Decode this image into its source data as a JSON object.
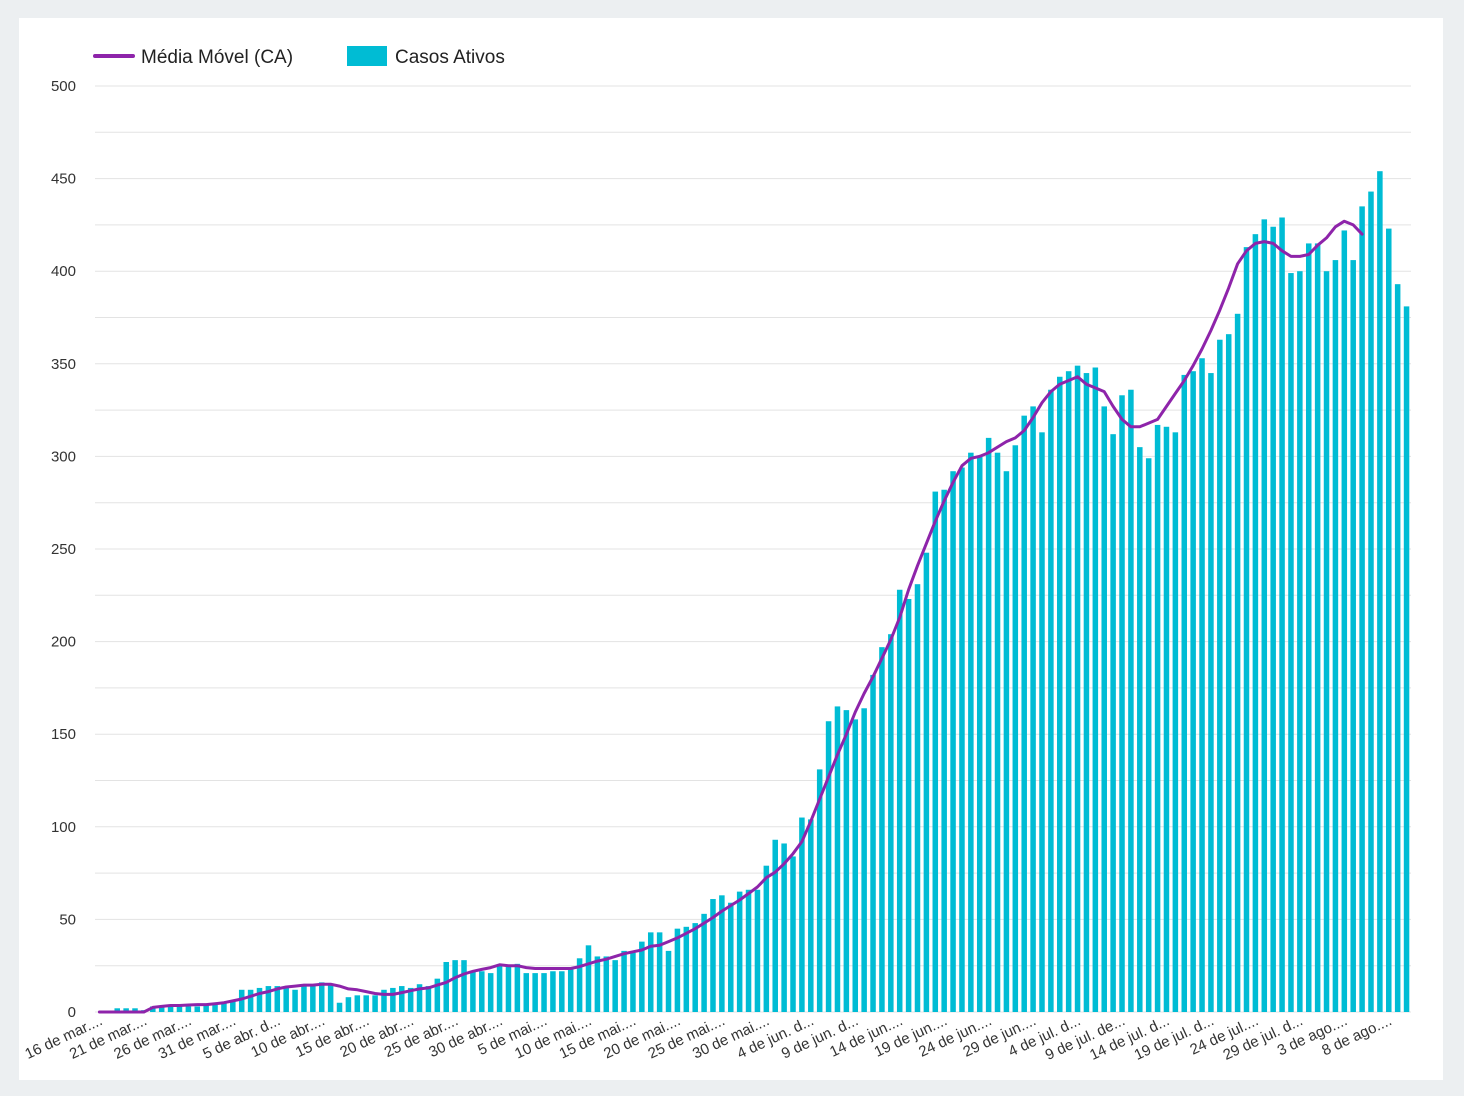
{
  "chart_data": {
    "type": "bar",
    "title": "",
    "xlabel": "",
    "ylabel": "",
    "ylim": [
      0,
      500
    ],
    "yticks": [
      0,
      50,
      100,
      150,
      200,
      250,
      300,
      350,
      400,
      450,
      500
    ],
    "grid": true,
    "legend_position": "top-left",
    "x_tick_labels": [
      "16 de mar....",
      "21 de mar....",
      "26 de mar....",
      "31 de mar....",
      "5 de abr. d...",
      "10 de abr....",
      "15 de abr....",
      "20 de abr....",
      "25 de abr....",
      "30 de abr....",
      "5 de mai....",
      "10 de mai....",
      "15 de mai....",
      "20 de mai....",
      "25 de mai....",
      "30 de mai....",
      "4 de jun. d...",
      "9 de jun. d...",
      "14 de jun....",
      "19 de jun....",
      "24 de jun....",
      "29 de jun....",
      "4 de jul. d...",
      "9 de jul. de...",
      "14 de jul. d...",
      "19 de jul. d...",
      "24 de jul....",
      "29 de jul. d...",
      "3 de ago....",
      "8 de ago...."
    ],
    "series": [
      {
        "name": "Casos Ativos",
        "type": "bar",
        "color": "#00bcd4",
        "values": [
          0,
          0,
          2,
          2,
          2,
          1,
          3,
          3,
          3,
          3,
          3,
          3,
          4,
          4,
          5,
          6,
          12,
          12,
          13,
          14,
          14,
          14,
          12,
          14,
          15,
          16,
          15,
          5,
          8,
          9,
          9,
          9,
          12,
          13,
          14,
          13,
          15,
          14,
          18,
          27,
          28,
          28,
          22,
          22,
          21,
          25,
          25,
          26,
          21,
          21,
          21,
          22,
          22,
          23,
          29,
          36,
          30,
          30,
          28,
          33,
          32,
          38,
          43,
          43,
          33,
          45,
          46,
          48,
          53,
          61,
          63,
          59,
          65,
          66,
          66,
          79,
          93,
          91,
          84,
          105,
          104,
          131,
          157,
          165,
          163,
          158,
          164,
          182,
          197,
          204,
          228,
          223,
          231,
          248,
          281,
          282,
          292,
          294,
          302,
          300,
          310,
          302,
          292,
          306,
          322,
          327,
          313,
          336,
          343,
          346,
          349,
          345,
          348,
          327,
          312,
          333,
          336,
          305,
          299,
          317,
          316,
          313,
          344,
          346,
          353,
          345,
          363,
          366,
          377,
          413,
          420,
          428,
          424,
          429,
          399,
          400,
          415,
          415,
          400,
          406,
          422,
          406,
          435,
          443,
          454,
          423,
          393,
          381
        ]
      },
      {
        "name": "Média Móvel (CA)",
        "type": "line",
        "color": "#8e24aa",
        "values": [
          0,
          0,
          0,
          0,
          0,
          0,
          2.5,
          3,
          3.5,
          3.5,
          3.8,
          4,
          4,
          4.5,
          5,
          6,
          7,
          8.5,
          10,
          11,
          12.5,
          13.5,
          14,
          14.5,
          14.5,
          15,
          15,
          14,
          12.5,
          12,
          11,
          10,
          9.5,
          9.5,
          10.5,
          11.5,
          12.5,
          13,
          14.5,
          16,
          18.5,
          20.5,
          22,
          23,
          24,
          25.5,
          25,
          25,
          24,
          23.5,
          23.5,
          23.5,
          23.5,
          23.5,
          24.5,
          26,
          27.5,
          28.5,
          30,
          31.5,
          32.5,
          33.5,
          35.5,
          36,
          38,
          40,
          42.5,
          45,
          48,
          51,
          54.5,
          57.5,
          60.5,
          64,
          67.5,
          72.5,
          75.5,
          80,
          85.5,
          92,
          103,
          115,
          127,
          139,
          150,
          162,
          172,
          181,
          191,
          201,
          213,
          228,
          241,
          253,
          265,
          276,
          286,
          295,
          299,
          300,
          302,
          305,
          308,
          310,
          314,
          321,
          329,
          335,
          339,
          341,
          343,
          339,
          337,
          335,
          327,
          320,
          316,
          316,
          318,
          320,
          327,
          334,
          341,
          349,
          358,
          368,
          379,
          391,
          404,
          411,
          415,
          416,
          415,
          411,
          408,
          408,
          409,
          414,
          418,
          424,
          427,
          425,
          420
        ]
      }
    ]
  }
}
